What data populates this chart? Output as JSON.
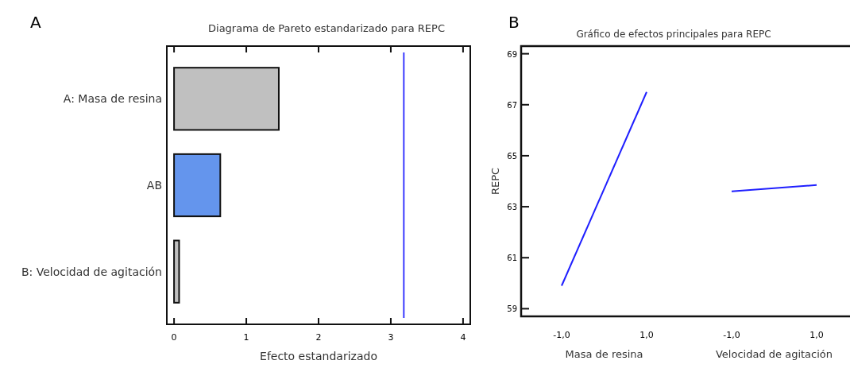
{
  "chart_data": [
    {
      "type": "bar",
      "orientation": "horizontal",
      "title": "Diagrama de Pareto estandarizado para REPC",
      "xlabel": "Efecto estandarizado",
      "categories": [
        "A: Masa de resina",
        "AB",
        "B: Velocidad de agitación"
      ],
      "values": [
        1.45,
        0.64,
        0.07
      ],
      "colors": [
        "#c0c0c0",
        "#6495ed",
        "#c0c0c0"
      ],
      "xlim": [
        -0.1,
        4.1
      ],
      "xticks": [
        0,
        1,
        2,
        3,
        4
      ],
      "ref_lines": [
        {
          "axis": "x",
          "value": 3.18,
          "color": "#3a3aff"
        }
      ],
      "annotations": [
        "A"
      ]
    },
    {
      "type": "line",
      "title": "Gráfico de efectos principales para REPC",
      "ylabel": "REPC",
      "categories": [
        "-1,0",
        "1,0",
        "-1,0",
        "1,0"
      ],
      "series": [
        {
          "color": "#1f1fff",
          "values": [
            59.9,
            67.5,
            null,
            null
          ]
        },
        {
          "color": "#1f1fff",
          "values": [
            null,
            null,
            63.6,
            63.85
          ]
        }
      ],
      "ylim": [
        58.7,
        69.3
      ],
      "yticks": [
        59,
        61,
        63,
        65,
        67,
        69
      ],
      "annotations": [
        "B",
        "Masa de resina",
        "Velocidad de agitación"
      ],
      "marker": "none",
      "line_style": "solid"
    }
  ]
}
